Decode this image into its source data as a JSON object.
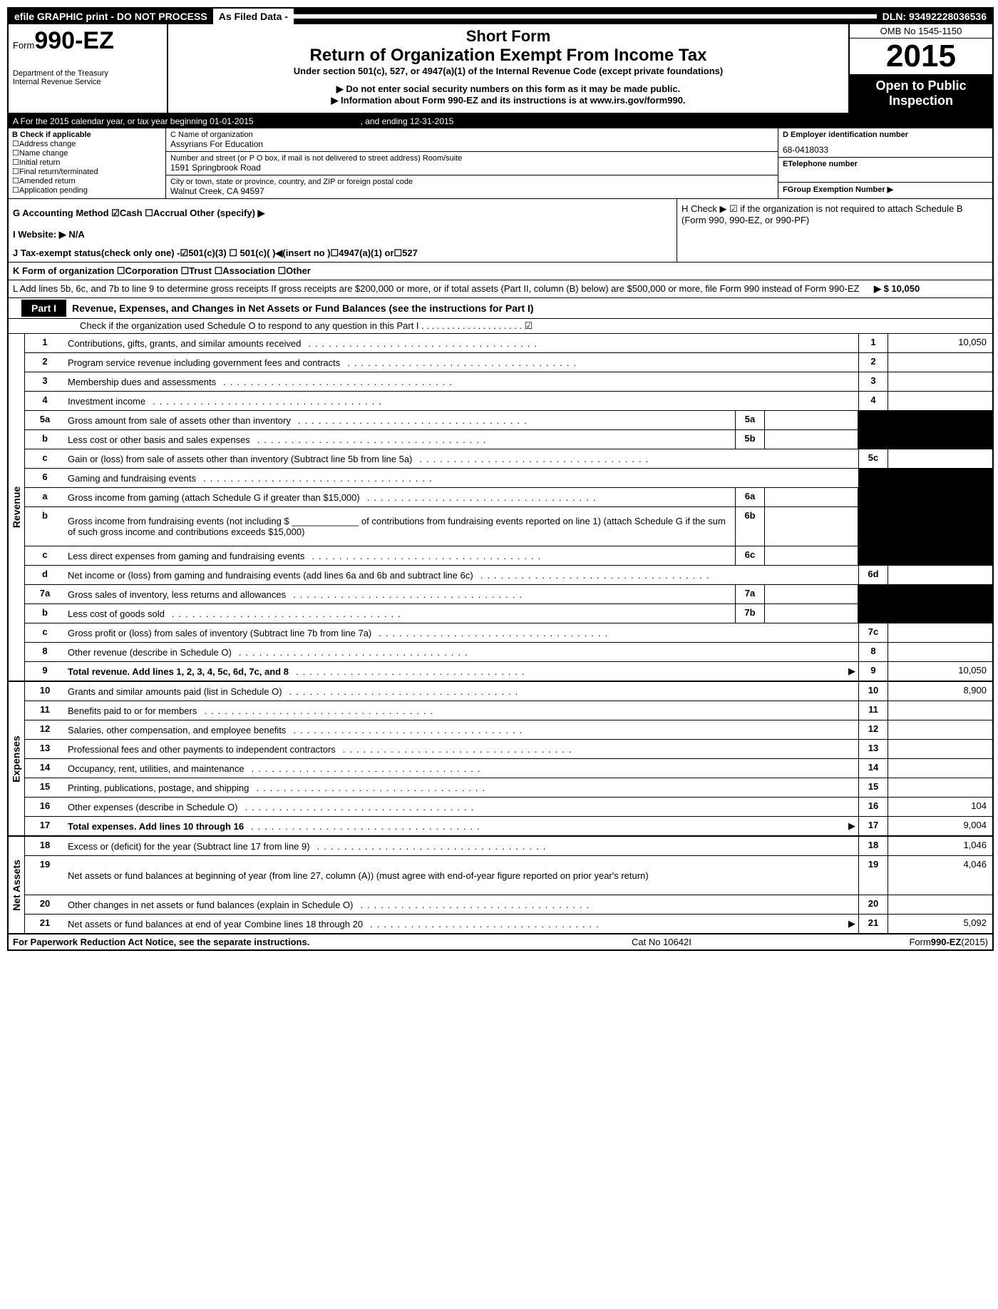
{
  "topbar": {
    "efile": "efile GRAPHIC print - DO NOT PROCESS",
    "asfiled": "As Filed Data -",
    "dln": "DLN: 93492228036536"
  },
  "header": {
    "form_prefix": "Form",
    "form_number": "990-EZ",
    "dept1": "Department of the Treasury",
    "dept2": "Internal Revenue Service",
    "title1": "Short Form",
    "title2": "Return of Organization Exempt From Income Tax",
    "subtitle": "Under section 501(c), 527, or 4947(a)(1) of the Internal Revenue Code (except private foundations)",
    "note1": "▶ Do not enter social security numbers on this form as it may be made public.",
    "note2": "▶ Information about Form 990-EZ and its instructions is at www.irs.gov/form990.",
    "omb": "OMB No 1545-1150",
    "year": "2015",
    "open1": "Open to Public",
    "open2": "Inspection"
  },
  "rowA": {
    "label": "A  For the 2015 calendar year, or tax year beginning 01-01-2015",
    "end": ", and ending 12-31-2015"
  },
  "colB": {
    "title": "B  Check if applicable",
    "items": [
      "Address change",
      "Name change",
      "Initial return",
      "Final return/terminated",
      "Amended return",
      "Application pending"
    ]
  },
  "colC": {
    "name_label": "C Name of organization",
    "name_value": "Assyrians For Education",
    "addr_label": "Number and street (or P  O  box, if mail is not delivered to street address) Room/suite",
    "addr_value": "1591 Springbrook Road",
    "city_label": "City or town, state or province, country, and ZIP or foreign postal code",
    "city_value": "Walnut Creek, CA  94597"
  },
  "colDEF": {
    "d_label": "D Employer identification number",
    "d_value": "68-0418033",
    "e_label": "ETelephone number",
    "f_label": "FGroup Exemption Number    ▶"
  },
  "rowG": "G Accounting Method   ☑Cash  ☐Accrual  Other (specify) ▶",
  "rowH": "H  Check ▶ ☑ if the organization is not required to attach Schedule B (Form 990, 990-EZ, or 990-PF)",
  "rowI": "I Website: ▶ N/A",
  "rowJ": "J Tax-exempt status(check only one) -☑501(c)(3)  ☐ 501(c)( )◀(insert no )☐4947(a)(1) or☐527",
  "rowK": "K Form of organization  ☐Corporation  ☐Trust  ☐Association  ☐Other",
  "rowL": {
    "text": "L Add lines 5b, 6c, and 7b to line 9 to determine gross receipts If gross receipts are $200,000 or more, or if total assets (Part II, column (B) below) are $500,000 or more, file Form 990 instead of Form 990-EZ",
    "amount": "▶ $ 10,050"
  },
  "part1": {
    "label": "Part I",
    "title": "Revenue, Expenses, and Changes in Net Assets or Fund Balances (see the instructions for Part I)",
    "sub": "Check if the organization used Schedule O to respond to any question in this Part I . . . . . . . . . . . . . . . . . . . . ☑"
  },
  "sections": [
    {
      "label": "Revenue",
      "lines": [
        {
          "num": "1",
          "desc": "Contributions, gifts, grants, and similar amounts received",
          "rnum": "1",
          "rval": "10,050"
        },
        {
          "num": "2",
          "desc": "Program service revenue including government fees and contracts",
          "rnum": "2",
          "rval": ""
        },
        {
          "num": "3",
          "desc": "Membership dues and assessments",
          "rnum": "3",
          "rval": ""
        },
        {
          "num": "4",
          "desc": "Investment income",
          "rnum": "4",
          "rval": ""
        },
        {
          "num": "5a",
          "desc": "Gross amount from sale of assets other than inventory",
          "midnum": "5a",
          "midval": "",
          "rshaded": true
        },
        {
          "num": "b",
          "desc": "Less  cost or other basis and sales expenses",
          "midnum": "5b",
          "midval": "",
          "rshaded": true
        },
        {
          "num": "c",
          "desc": "Gain or (loss) from sale of assets other than inventory (Subtract line 5b from line 5a)",
          "rnum": "5c",
          "rval": ""
        },
        {
          "num": "6",
          "desc": "Gaming and fundraising events",
          "rshaded": true,
          "nonum": true
        },
        {
          "num": "a",
          "desc": "Gross income from gaming (attach Schedule G if greater than $15,000)",
          "midnum": "6a",
          "midval": "",
          "rshaded": true
        },
        {
          "num": "b",
          "desc": "Gross income from fundraising events (not including $ _____________ of contributions from fundraising events reported on line 1) (attach Schedule G if the sum of such gross income and contributions exceeds $15,000)",
          "midnum": "6b",
          "midval": "",
          "rshaded": true,
          "tall": true
        },
        {
          "num": "c",
          "desc": "Less  direct expenses from gaming and fundraising events",
          "midnum": "6c",
          "midval": "",
          "rshaded": true
        },
        {
          "num": "d",
          "desc": "Net income or (loss) from gaming and fundraising events (add lines 6a and 6b and subtract line 6c)",
          "rnum": "6d",
          "rval": ""
        },
        {
          "num": "7a",
          "desc": "Gross sales of inventory, less returns and allowances",
          "midnum": "7a",
          "midval": "",
          "rshaded": true
        },
        {
          "num": "b",
          "desc": "Less  cost of goods sold",
          "midnum": "7b",
          "midval": "",
          "rshaded": true
        },
        {
          "num": "c",
          "desc": "Gross profit or (loss) from sales of inventory (Subtract line 7b from line 7a)",
          "rnum": "7c",
          "rval": ""
        },
        {
          "num": "8",
          "desc": "Other revenue (describe in Schedule O)",
          "rnum": "8",
          "rval": ""
        },
        {
          "num": "9",
          "desc": "Total revenue. Add lines 1, 2, 3, 4, 5c, 6d, 7c, and 8",
          "rnum": "9",
          "rval": "10,050",
          "arrow": true,
          "bold": true
        }
      ]
    },
    {
      "label": "Expenses",
      "lines": [
        {
          "num": "10",
          "desc": "Grants and similar amounts paid (list in Schedule O)",
          "rnum": "10",
          "rval": "8,900"
        },
        {
          "num": "11",
          "desc": "Benefits paid to or for members",
          "rnum": "11",
          "rval": ""
        },
        {
          "num": "12",
          "desc": "Salaries, other compensation, and employee benefits",
          "rnum": "12",
          "rval": ""
        },
        {
          "num": "13",
          "desc": "Professional fees and other payments to independent contractors",
          "rnum": "13",
          "rval": ""
        },
        {
          "num": "14",
          "desc": "Occupancy, rent, utilities, and maintenance",
          "rnum": "14",
          "rval": ""
        },
        {
          "num": "15",
          "desc": "Printing, publications, postage, and shipping",
          "rnum": "15",
          "rval": ""
        },
        {
          "num": "16",
          "desc": "Other expenses (describe in Schedule O)",
          "rnum": "16",
          "rval": "104"
        },
        {
          "num": "17",
          "desc": "Total expenses. Add lines 10 through 16",
          "rnum": "17",
          "rval": "9,004",
          "arrow": true,
          "bold": true
        }
      ]
    },
    {
      "label": "Net Assets",
      "lines": [
        {
          "num": "18",
          "desc": "Excess or (deficit) for the year (Subtract line 17 from line 9)",
          "rnum": "18",
          "rval": "1,046"
        },
        {
          "num": "19",
          "desc": "Net assets or fund balances at beginning of year (from line 27, column (A)) (must agree with end-of-year figure reported on prior year's return)",
          "rnum": "19",
          "rval": "4,046",
          "tall": true
        },
        {
          "num": "20",
          "desc": "Other changes in net assets or fund balances (explain in Schedule O)",
          "rnum": "20",
          "rval": ""
        },
        {
          "num": "21",
          "desc": "Net assets or fund balances at end of year Combine lines 18 through 20",
          "rnum": "21",
          "rval": "5,092",
          "arrow": true
        }
      ]
    }
  ],
  "footer": {
    "left": "For Paperwork Reduction Act Notice, see the separate instructions.",
    "mid": "Cat No 10642I",
    "right": "Form990-EZ(2015)"
  }
}
